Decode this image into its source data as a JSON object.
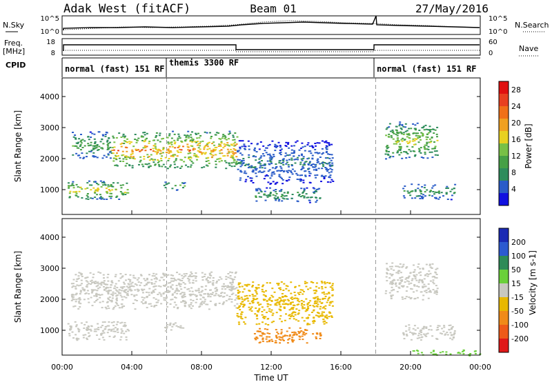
{
  "header": {
    "station": "Adak West (fitACF)",
    "beam": "Beam 01",
    "date": "27/May/2016"
  },
  "noise_panel": {
    "left_label": "N.Sky",
    "right_label": "N.Search",
    "left_ticks": [
      "10^5",
      "10^0"
    ],
    "right_ticks": [
      "10^5",
      "10^0"
    ]
  },
  "freq_panel": {
    "left_label_1": "Freq.",
    "left_label_2": "[MHz]",
    "right_label": "Nave",
    "left_ticks": [
      "18",
      "8"
    ],
    "right_ticks": [
      "60",
      "0"
    ]
  },
  "cpid_panel": {
    "label": "CPID",
    "segments": [
      {
        "start": 0,
        "end": 6,
        "label": "normal (fast) 151 RF"
      },
      {
        "start": 6,
        "end": 18,
        "label": "themis 3300 RF"
      },
      {
        "start": 18,
        "end": 24,
        "label": "normal (fast) 151 RF"
      }
    ]
  },
  "colors": {
    "power": [
      "#1010e0",
      "#2a5cc8",
      "#2e8c5c",
      "#46a046",
      "#78c046",
      "#e8d020",
      "#f0a020",
      "#f07018",
      "#e84020",
      "#e01010"
    ],
    "velocity": [
      "#1a2ab4",
      "#2c5ad0",
      "#2e8b57",
      "#6ad03a",
      "#c8c8c0",
      "#e8b800",
      "#f08a18",
      "#ee5a18",
      "#e01818"
    ]
  },
  "chart_data": [
    {
      "type": "heatmap",
      "quantity": "Power",
      "ylabel": "Slant Range [km]",
      "yticks": [
        "1000",
        "2000",
        "3000",
        "4000"
      ],
      "ylim": [
        200,
        4600
      ],
      "xlim": [
        0,
        24
      ],
      "colorbar_label": "Power [dB]",
      "colorbar_ticks": [
        "4",
        "8",
        "12",
        "16",
        "20",
        "24",
        "28"
      ],
      "features": [
        {
          "t": [
            0.3,
            3.8
          ],
          "r": [
            700,
            1300
          ],
          "peak": 20
        },
        {
          "t": [
            0.5,
            2.8
          ],
          "r": [
            2000,
            2900
          ],
          "peak": 14
        },
        {
          "t": [
            2.8,
            10.0
          ],
          "r": [
            1700,
            2900
          ],
          "peak": 26
        },
        {
          "t": [
            5.8,
            7.0
          ],
          "r": [
            1000,
            1300
          ],
          "peak": 14
        },
        {
          "t": [
            10.0,
            15.5
          ],
          "r": [
            1200,
            2600
          ],
          "peak": 8
        },
        {
          "t": [
            11.0,
            14.8
          ],
          "r": [
            600,
            1100
          ],
          "peak": 12
        },
        {
          "t": [
            18.5,
            21.5
          ],
          "r": [
            2000,
            3200
          ],
          "peak": 18
        },
        {
          "t": [
            19.5,
            22.5
          ],
          "r": [
            700,
            1200
          ],
          "peak": 12
        }
      ]
    },
    {
      "type": "heatmap",
      "quantity": "Velocity",
      "ylabel": "Slant Range [km]",
      "yticks": [
        "1000",
        "2000",
        "3000",
        "4000"
      ],
      "ylim": [
        200,
        4600
      ],
      "xlim": [
        0,
        24
      ],
      "colorbar_label": "Velocity [m s-1]",
      "colorbar_ticks": [
        "200",
        "100",
        "50",
        "15",
        "-15",
        "-50",
        "-100",
        "-200"
      ],
      "features": [
        {
          "t": [
            0.3,
            3.8
          ],
          "r": [
            700,
            1300
          ],
          "vel": 0
        },
        {
          "t": [
            0.5,
            10.0
          ],
          "r": [
            1700,
            2900
          ],
          "vel": 0
        },
        {
          "t": [
            5.8,
            7.0
          ],
          "r": [
            1000,
            1300
          ],
          "vel": 0
        },
        {
          "t": [
            10.0,
            15.5
          ],
          "r": [
            1200,
            2600
          ],
          "vel": -40
        },
        {
          "t": [
            11.0,
            14.8
          ],
          "r": [
            600,
            1100
          ],
          "vel": -60
        },
        {
          "t": [
            18.5,
            21.5
          ],
          "r": [
            2000,
            3200
          ],
          "vel": 0
        },
        {
          "t": [
            19.5,
            22.5
          ],
          "r": [
            700,
            1200
          ],
          "vel": 0
        },
        {
          "t": [
            20.0,
            24.0
          ],
          "r": [
            200,
            400
          ],
          "vel": 30
        }
      ]
    }
  ],
  "x_axis": {
    "ticks": [
      "00:00",
      "04:00",
      "08:00",
      "12:00",
      "16:00",
      "20:00",
      "00:00"
    ],
    "label": "Time UT"
  }
}
